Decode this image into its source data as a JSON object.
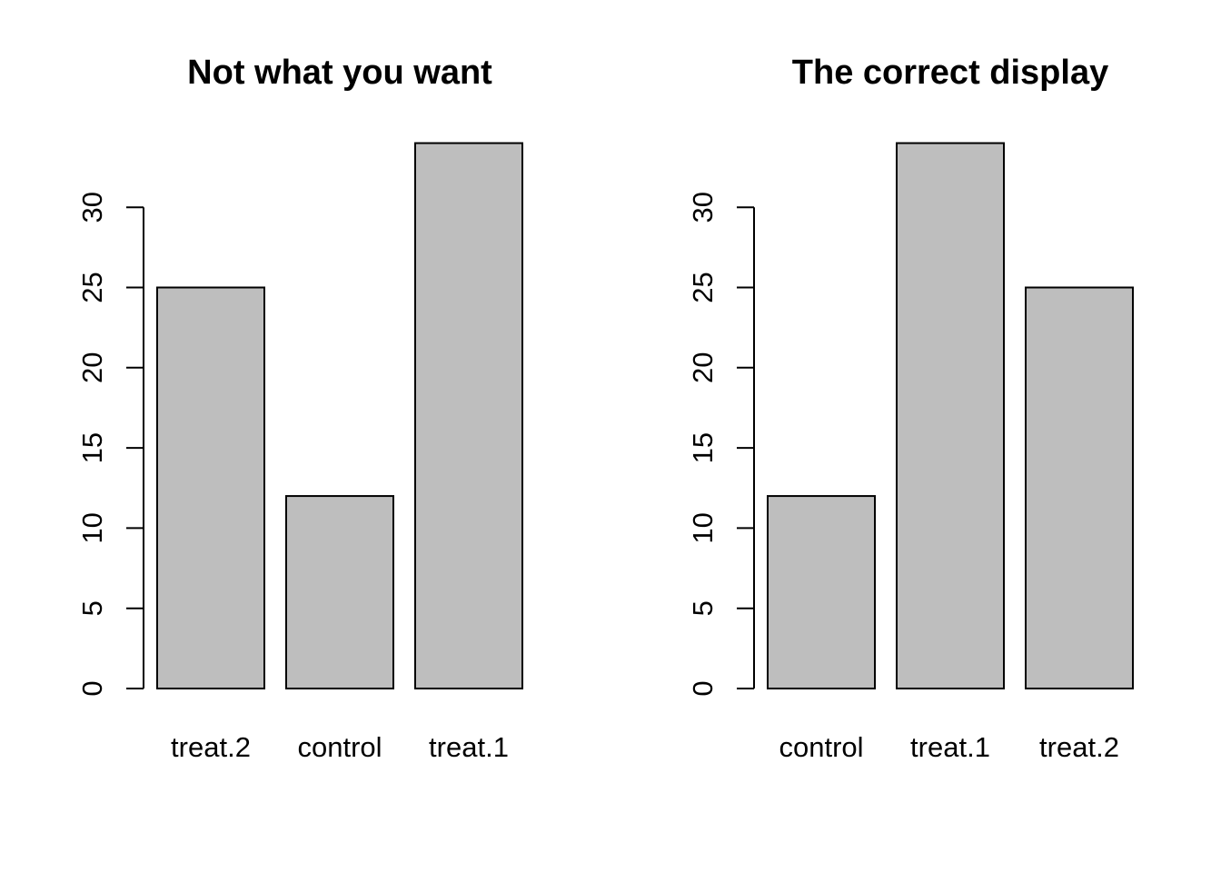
{
  "chart_data": [
    {
      "type": "bar",
      "title": "Not what you want",
      "xlabel": "",
      "ylabel": "",
      "categories": [
        "treat.2",
        "control",
        "treat.1"
      ],
      "values": [
        25,
        12,
        34
      ],
      "ylim": [
        0,
        34
      ],
      "yticks": [
        0,
        5,
        10,
        15,
        20,
        25,
        30
      ],
      "ytick_labels": [
        "0",
        "5",
        "10",
        "15",
        "20",
        "25",
        "30"
      ],
      "grid": false,
      "bar_color": "#bebebe"
    },
    {
      "type": "bar",
      "title": "The correct display",
      "xlabel": "",
      "ylabel": "",
      "categories": [
        "control",
        "treat.1",
        "treat.2"
      ],
      "values": [
        12,
        34,
        25
      ],
      "ylim": [
        0,
        34
      ],
      "yticks": [
        0,
        5,
        10,
        15,
        20,
        25,
        30
      ],
      "ytick_labels": [
        "0",
        "5",
        "10",
        "15",
        "20",
        "25",
        "30"
      ],
      "grid": false,
      "bar_color": "#bebebe"
    }
  ]
}
